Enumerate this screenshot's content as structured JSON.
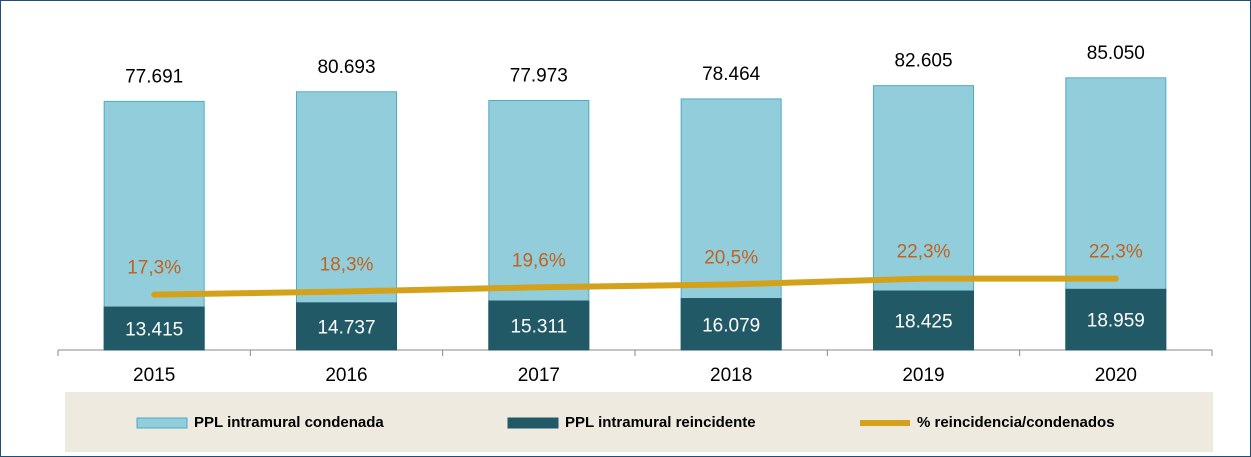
{
  "chart_data": {
    "type": "bar",
    "categories": [
      "2015",
      "2016",
      "2017",
      "2018",
      "2019",
      "2020"
    ],
    "ylim": [
      0,
      100000
    ],
    "y2lim": [
      0,
      100
    ],
    "legend": "bottom",
    "series": [
      {
        "name": "PPL intramural condenada",
        "type": "bar",
        "color": "#92cddc",
        "values": [
          77691,
          80693,
          77973,
          78464,
          82605,
          85050
        ],
        "value_labels": [
          "77.691",
          "80.693",
          "77.973",
          "78.464",
          "82.605",
          "85.050"
        ]
      },
      {
        "name": "PPL intramural reincidente",
        "type": "bar",
        "color": "#215967",
        "values": [
          13415,
          14737,
          15311,
          16079,
          18425,
          18959
        ],
        "value_labels": [
          "13.415",
          "14.737",
          "15.311",
          "16.079",
          "18.425",
          "18.959"
        ]
      },
      {
        "name": "% reincidencia/condenados",
        "type": "line",
        "axis": "y2",
        "color": "#d4a21a",
        "values": [
          17.3,
          18.3,
          19.6,
          20.5,
          22.3,
          22.3
        ],
        "value_labels": [
          "17,3%",
          "18,3%",
          "19,6%",
          "20,5%",
          "22,3%",
          "22,3%"
        ]
      }
    ]
  }
}
